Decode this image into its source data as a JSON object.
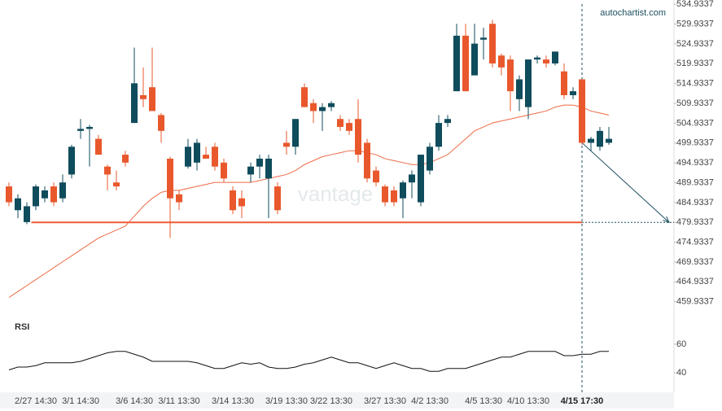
{
  "chart_data": [
    {
      "type": "candlestick",
      "source": "autochartist.com",
      "watermark": "vantage",
      "categories": [
        null,
        null,
        null,
        "2/27 14:30",
        null,
        null,
        null,
        null,
        "3/1 14:30",
        null,
        null,
        null,
        null,
        null,
        "3/6 14:30",
        null,
        null,
        null,
        null,
        "3/11 13:30",
        null,
        null,
        null,
        null,
        null,
        "3/14 13:30",
        null,
        null,
        null,
        null,
        null,
        "3/19 13:30",
        null,
        null,
        null,
        null,
        "3/22 13:30",
        null,
        null,
        null,
        null,
        null,
        "3/27 13:30",
        null,
        null,
        null,
        null,
        "4/2 13:30",
        null,
        null,
        null,
        null,
        null,
        "4/5 13:30",
        null,
        null,
        null,
        null,
        "4/10 13:30",
        null,
        null,
        null,
        null,
        null,
        "4/15 17:30",
        null,
        null,
        null
      ],
      "highlight_category": 64,
      "open": [
        489,
        483,
        480,
        484,
        486,
        489,
        486,
        492,
        503,
        503.5,
        501,
        494,
        490,
        497,
        505,
        512,
        514,
        507,
        496,
        487,
        494,
        495,
        497,
        499,
        495,
        488,
        486,
        492,
        494,
        491,
        489,
        500,
        499,
        514,
        510,
        508,
        509,
        506,
        505,
        506,
        500,
        493,
        489,
        488,
        486,
        490,
        485,
        493,
        499,
        505,
        513,
        527,
        517,
        526,
        530,
        522,
        521,
        511,
        509,
        521,
        521,
        520,
        518,
        512,
        516,
        500,
        499,
        500
      ],
      "high": [
        490,
        487,
        485,
        489.5,
        489,
        490,
        492,
        499.5,
        506,
        504.5,
        502,
        494.5,
        493,
        498,
        524,
        519,
        524,
        507.5,
        496.5,
        488,
        501,
        501,
        499,
        500,
        496,
        489,
        488,
        495,
        497,
        497,
        490,
        503,
        506,
        515,
        511,
        510,
        510.5,
        507,
        506,
        511,
        501,
        494,
        489.5,
        489,
        490.5,
        493,
        497,
        500,
        507,
        507,
        530,
        530,
        530,
        529,
        531,
        522.5,
        522,
        517,
        521,
        522,
        522,
        523,
        520,
        514,
        516,
        501.5,
        504,
        504
      ],
      "low": [
        484,
        481,
        479.5,
        483,
        485,
        484,
        485,
        491,
        501,
        494,
        497,
        488,
        488,
        494,
        505,
        509,
        508,
        500,
        476,
        483,
        493.5,
        493,
        496,
        493,
        490,
        482,
        481,
        490,
        491,
        481,
        482,
        497,
        497,
        509,
        505,
        503,
        508,
        503,
        502,
        495,
        490,
        489,
        484,
        484,
        481,
        486,
        484,
        492,
        498,
        504,
        513,
        513,
        517,
        521,
        519,
        517,
        508,
        508,
        506,
        520,
        519,
        519.5,
        511,
        511,
        499.5,
        498,
        498,
        499.5
      ],
      "close": [
        485,
        486,
        484,
        489,
        488,
        485,
        490,
        499,
        503.5,
        504,
        497,
        492,
        489,
        495,
        515,
        511,
        508,
        503,
        486,
        485,
        499,
        500,
        496,
        494,
        491,
        483,
        484,
        494,
        496,
        496,
        483,
        499,
        506,
        509,
        508,
        509,
        510,
        504,
        503,
        497,
        491,
        490,
        485,
        485,
        490,
        492,
        497,
        499,
        505,
        506,
        527,
        513,
        525,
        526.5,
        520,
        519,
        513,
        516,
        521,
        521.5,
        520,
        523,
        512,
        513,
        500,
        501,
        503,
        501
      ],
      "moving_average": [
        461,
        462.5,
        464,
        465.5,
        467,
        468.5,
        470,
        471.5,
        473,
        474.5,
        476,
        477,
        478,
        479,
        481.5,
        484,
        486,
        487.5,
        488,
        488,
        488.5,
        489,
        489.5,
        490,
        490,
        490,
        490,
        490,
        490.5,
        491,
        491.5,
        492,
        493,
        494.5,
        495.5,
        496.5,
        497,
        497.5,
        498,
        498,
        497.5,
        497,
        496,
        495.5,
        495,
        494.5,
        494.5,
        495,
        496,
        497,
        499,
        501,
        503,
        504,
        505,
        505.5,
        506,
        506.5,
        507,
        507.5,
        508,
        509,
        509.5,
        509.5,
        509,
        508,
        507.5,
        507
      ],
      "up_color": "#0f4c5c",
      "down_color": "#e8582c",
      "ma_color": "#ef6a45",
      "level": 479.9337,
      "level_color": "#ef5a36",
      "ylim": [
        457,
        536
      ],
      "yticks": [
        534.9337,
        529.9337,
        524.9337,
        519.9337,
        514.9337,
        509.9337,
        504.9337,
        499.9337,
        494.9337,
        489.9337,
        484.9337,
        479.9337,
        474.9337,
        469.9337,
        464.9337,
        459.9337
      ]
    },
    {
      "type": "line",
      "title": "RSI",
      "color": "#111111",
      "values": [
        42,
        44,
        44,
        45,
        47,
        47,
        47,
        47,
        48,
        50,
        52,
        54,
        55,
        55,
        53,
        51,
        48,
        48,
        48,
        48,
        48,
        47,
        45,
        43,
        43,
        45,
        47,
        46,
        47,
        44,
        43,
        43,
        44,
        46,
        47,
        49,
        51,
        49,
        47,
        47,
        45,
        43,
        45,
        47,
        45,
        43,
        43,
        41,
        41,
        43,
        43,
        43,
        45,
        47,
        49,
        51,
        51,
        53,
        55,
        55,
        55,
        55,
        52,
        52,
        53,
        53,
        55,
        55
      ],
      "ylim": [
        28,
        76
      ],
      "yticks": [
        60,
        40
      ]
    }
  ]
}
